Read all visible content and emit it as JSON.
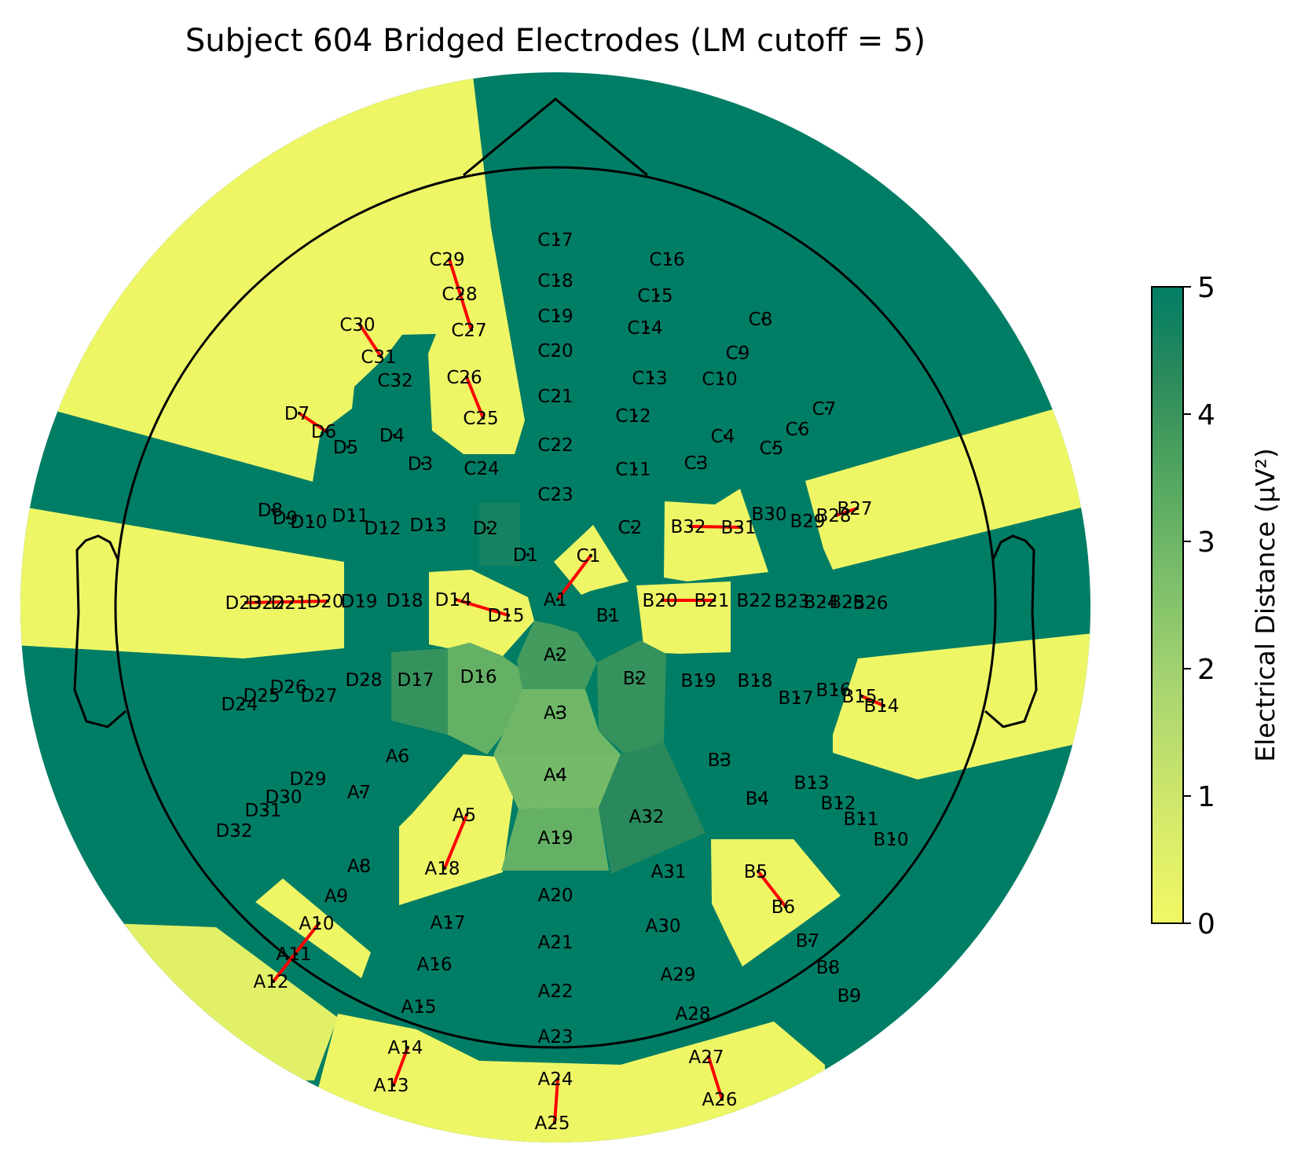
{
  "chart_data": {
    "type": "topomap",
    "title": "Subject 604 Bridged Electrodes (LM cutoff = 5)",
    "colorbar": {
      "label": "Electrical Distance (μV²)",
      "ticks": [
        "0",
        "1",
        "2",
        "3",
        "4",
        "5"
      ],
      "range": [
        0,
        5
      ],
      "colors": [
        "#f2f865",
        "#d1e86b",
        "#a6d370",
        "#79bd6a",
        "#4ea35f",
        "#2b8a5c",
        "#007d65"
      ]
    },
    "region_values": {
      "high": 5.0,
      "bridged": 0.1,
      "bridged_alt": 0.4,
      "D17": 3.9,
      "D16": 2.9,
      "A2": 3.6,
      "B2": 3.9,
      "A3": 2.7,
      "A4": 2.6,
      "A19": 2.9,
      "A32": 4.2,
      "D2": 4.6
    },
    "electrodes": [
      {
        "name": "C17"
      },
      {
        "name": "C29"
      },
      {
        "name": "C16"
      },
      {
        "name": "C18"
      },
      {
        "name": "C28"
      },
      {
        "name": "C15"
      },
      {
        "name": "C30"
      },
      {
        "name": "C19"
      },
      {
        "name": "C8"
      },
      {
        "name": "C27"
      },
      {
        "name": "C14"
      },
      {
        "name": "C31"
      },
      {
        "name": "C9"
      },
      {
        "name": "C20"
      },
      {
        "name": "C26"
      },
      {
        "name": "C32"
      },
      {
        "name": "C13"
      },
      {
        "name": "C10"
      },
      {
        "name": "C21"
      },
      {
        "name": "D7"
      },
      {
        "name": "C7"
      },
      {
        "name": "C12"
      },
      {
        "name": "C25"
      },
      {
        "name": "D6"
      },
      {
        "name": "D4"
      },
      {
        "name": "C6"
      },
      {
        "name": "C4"
      },
      {
        "name": "D5"
      },
      {
        "name": "C22"
      },
      {
        "name": "C5"
      },
      {
        "name": "D3"
      },
      {
        "name": "C3"
      },
      {
        "name": "C24"
      },
      {
        "name": "C11"
      },
      {
        "name": "C23"
      },
      {
        "name": "D8"
      },
      {
        "name": "B27"
      },
      {
        "name": "D9"
      },
      {
        "name": "D11"
      },
      {
        "name": "B30"
      },
      {
        "name": "B28"
      },
      {
        "name": "D10"
      },
      {
        "name": "B29"
      },
      {
        "name": "D12"
      },
      {
        "name": "D13"
      },
      {
        "name": "D2"
      },
      {
        "name": "C2"
      },
      {
        "name": "B32"
      },
      {
        "name": "B31"
      },
      {
        "name": "D1"
      },
      {
        "name": "C1"
      },
      {
        "name": "D23"
      },
      {
        "name": "D22"
      },
      {
        "name": "D21"
      },
      {
        "name": "D20"
      },
      {
        "name": "D19"
      },
      {
        "name": "D18"
      },
      {
        "name": "D14"
      },
      {
        "name": "A1"
      },
      {
        "name": "B20"
      },
      {
        "name": "B21"
      },
      {
        "name": "B22"
      },
      {
        "name": "B23"
      },
      {
        "name": "B24"
      },
      {
        "name": "B25"
      },
      {
        "name": "B26"
      },
      {
        "name": "D15"
      },
      {
        "name": "B1"
      },
      {
        "name": "A2"
      },
      {
        "name": "D28"
      },
      {
        "name": "D17"
      },
      {
        "name": "D16"
      },
      {
        "name": "B2"
      },
      {
        "name": "B19"
      },
      {
        "name": "B18"
      },
      {
        "name": "D26"
      },
      {
        "name": "B16"
      },
      {
        "name": "D25"
      },
      {
        "name": "D27"
      },
      {
        "name": "B17"
      },
      {
        "name": "B15"
      },
      {
        "name": "D24"
      },
      {
        "name": "B14"
      },
      {
        "name": "A3"
      },
      {
        "name": "A6"
      },
      {
        "name": "B3"
      },
      {
        "name": "D29"
      },
      {
        "name": "A4"
      },
      {
        "name": "B13"
      },
      {
        "name": "D30"
      },
      {
        "name": "A7"
      },
      {
        "name": "B4"
      },
      {
        "name": "B12"
      },
      {
        "name": "D31"
      },
      {
        "name": "A5"
      },
      {
        "name": "A32"
      },
      {
        "name": "B11"
      },
      {
        "name": "D32"
      },
      {
        "name": "A19"
      },
      {
        "name": "B10"
      },
      {
        "name": "A8"
      },
      {
        "name": "A18"
      },
      {
        "name": "B5"
      },
      {
        "name": "A31"
      },
      {
        "name": "A20"
      },
      {
        "name": "A9"
      },
      {
        "name": "B6"
      },
      {
        "name": "A10"
      },
      {
        "name": "A17"
      },
      {
        "name": "A30"
      },
      {
        "name": "B7"
      },
      {
        "name": "A21"
      },
      {
        "name": "A11"
      },
      {
        "name": "A16"
      },
      {
        "name": "A29"
      },
      {
        "name": "B8"
      },
      {
        "name": "A12"
      },
      {
        "name": "A22"
      },
      {
        "name": "B9"
      },
      {
        "name": "A15"
      },
      {
        "name": "A28"
      },
      {
        "name": "A23"
      },
      {
        "name": "A14"
      },
      {
        "name": "A27"
      },
      {
        "name": "A24"
      },
      {
        "name": "A13"
      },
      {
        "name": "A26"
      },
      {
        "name": "A25"
      }
    ],
    "bridged_pairs": [
      [
        "C29",
        "C27"
      ],
      [
        "C30",
        "C31"
      ],
      [
        "C26",
        "C25"
      ],
      [
        "D7",
        "D6"
      ],
      [
        "B28",
        "B27"
      ],
      [
        "B32",
        "B31"
      ],
      [
        "C1",
        "A1"
      ],
      [
        "D23",
        "D20"
      ],
      [
        "D14",
        "D15"
      ],
      [
        "B20",
        "B21"
      ],
      [
        "B15",
        "B14"
      ],
      [
        "A5",
        "A18"
      ],
      [
        "A10",
        "A12"
      ],
      [
        "B5",
        "B6"
      ],
      [
        "A14",
        "A13"
      ],
      [
        "A27",
        "A26"
      ],
      [
        "A24",
        "A25"
      ]
    ]
  }
}
